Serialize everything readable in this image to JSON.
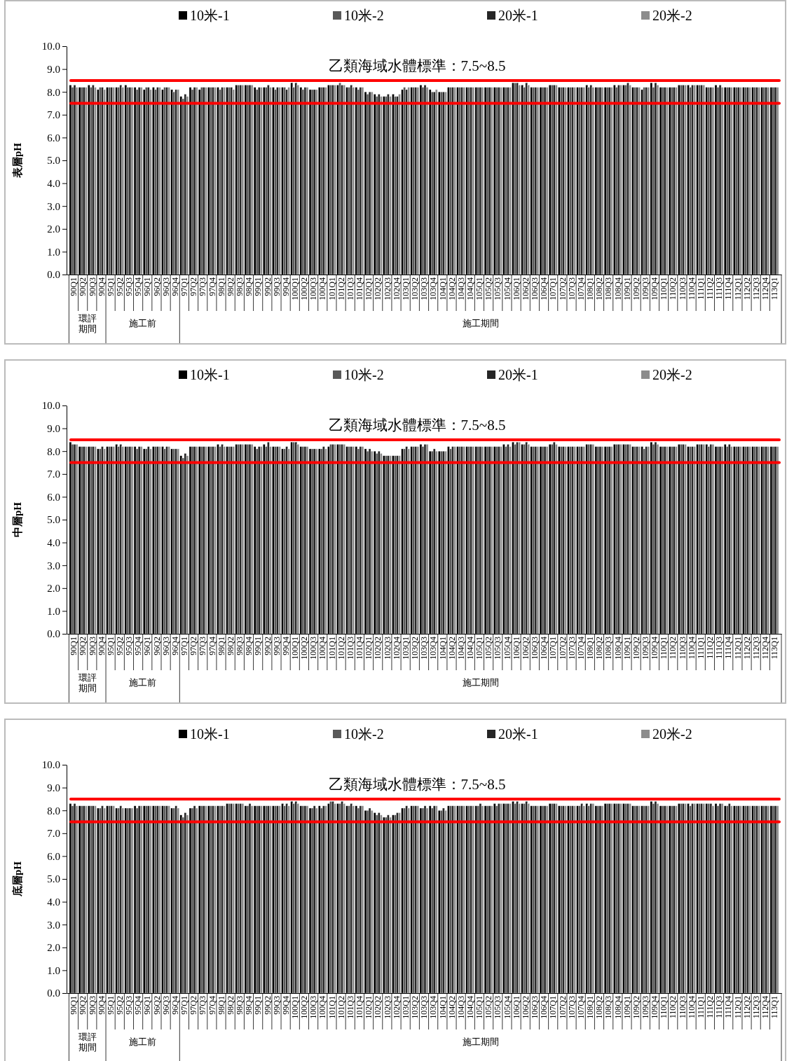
{
  "chart_data": [
    {
      "type": "bar",
      "ylabel": "表層pH",
      "legend": "top",
      "grid": false,
      "categories": [
        "90Q1",
        "90Q2",
        "90Q3",
        "90Q4",
        "95Q1",
        "95Q2",
        "95Q3",
        "95Q4",
        "96Q1",
        "96Q2",
        "96Q3",
        "96Q4",
        "97Q1",
        "97Q2",
        "97Q3",
        "97Q4",
        "98Q1",
        "98Q2",
        "98Q3",
        "98Q4",
        "99Q1",
        "99Q2",
        "99Q3",
        "99Q4",
        "100Q1",
        "100Q2",
        "100Q3",
        "100Q4",
        "101Q1",
        "101Q2",
        "101Q3",
        "101Q4",
        "102Q1",
        "102Q2",
        "102Q3",
        "102Q4",
        "103Q1",
        "103Q2",
        "103Q3",
        "103Q4",
        "104Q1",
        "104Q2",
        "104Q3",
        "104Q4",
        "105Q1",
        "105Q2",
        "105Q3",
        "105Q4",
        "106Q1",
        "106Q2",
        "106Q3",
        "106Q4",
        "107Q1",
        "107Q2",
        "107Q3",
        "107Q4",
        "108Q1",
        "108Q2",
        "108Q3",
        "108Q4",
        "109Q1",
        "109Q2",
        "109Q3",
        "109Q4",
        "110Q1",
        "110Q2",
        "110Q3",
        "110Q4",
        "111Q1",
        "111Q2",
        "111Q3",
        "111Q4",
        "112Q1",
        "112Q2",
        "112Q3",
        "112Q4",
        "113Q1"
      ],
      "series": [
        {
          "name": "10米-1",
          "color": "#000000",
          "values": [
            8.3,
            8.2,
            8.3,
            8.1,
            8.2,
            8.2,
            8.3,
            8.2,
            8.1,
            8.2,
            8.1,
            8.1,
            7.8,
            8.2,
            8.1,
            8.2,
            8.2,
            8.2,
            8.3,
            8.3,
            8.2,
            8.2,
            8.2,
            8.2,
            8.4,
            8.2,
            8.1,
            8.2,
            8.3,
            8.3,
            8.2,
            8.2,
            8.0,
            7.9,
            7.8,
            7.9,
            8.1,
            8.2,
            8.3,
            8.1,
            8.0,
            8.2,
            8.2,
            8.2,
            8.2,
            8.2,
            8.2,
            8.2,
            8.4,
            8.3,
            8.2,
            8.2,
            8.3,
            8.2,
            8.2,
            8.2,
            8.3,
            8.2,
            8.2,
            8.3,
            8.3,
            8.2,
            8.1,
            8.4,
            8.2,
            8.2,
            8.3,
            8.3,
            8.3,
            8.2,
            8.3,
            8.2,
            8.2,
            8.2,
            8.2,
            8.2,
            8.2
          ]
        },
        {
          "name": "10米-2",
          "color": "#595959",
          "values": [
            8.2,
            8.2,
            8.2,
            8.2,
            8.2,
            8.2,
            8.2,
            8.1,
            8.2,
            8.1,
            8.2,
            8.0,
            7.7,
            8.1,
            8.2,
            8.2,
            8.1,
            8.2,
            8.3,
            8.3,
            8.1,
            8.2,
            8.1,
            8.2,
            8.2,
            8.1,
            8.1,
            8.2,
            8.3,
            8.4,
            8.2,
            8.1,
            7.9,
            7.8,
            7.8,
            7.8,
            8.2,
            8.2,
            8.2,
            8.0,
            8.0,
            8.2,
            8.2,
            8.2,
            8.2,
            8.2,
            8.2,
            8.2,
            8.4,
            8.2,
            8.2,
            8.2,
            8.3,
            8.2,
            8.2,
            8.2,
            8.2,
            8.2,
            8.2,
            8.2,
            8.3,
            8.2,
            8.2,
            8.2,
            8.2,
            8.2,
            8.3,
            8.2,
            8.3,
            8.2,
            8.2,
            8.2,
            8.2,
            8.2,
            8.2,
            8.2,
            8.2
          ]
        },
        {
          "name": "20米-1",
          "color": "#262626",
          "values": [
            8.3,
            8.2,
            8.3,
            8.2,
            8.2,
            8.3,
            8.2,
            8.2,
            8.2,
            8.2,
            8.2,
            8.1,
            7.9,
            8.2,
            8.2,
            8.2,
            8.2,
            8.2,
            8.3,
            8.3,
            8.2,
            8.3,
            8.2,
            8.1,
            8.4,
            8.2,
            8.1,
            8.2,
            8.3,
            8.3,
            8.3,
            8.2,
            8.0,
            7.9,
            7.9,
            7.8,
            8.1,
            8.2,
            8.3,
            8.0,
            8.0,
            8.2,
            8.2,
            8.2,
            8.2,
            8.2,
            8.2,
            8.2,
            8.4,
            8.4,
            8.2,
            8.2,
            8.3,
            8.2,
            8.2,
            8.2,
            8.3,
            8.2,
            8.2,
            8.3,
            8.4,
            8.2,
            8.2,
            8.4,
            8.2,
            8.2,
            8.3,
            8.3,
            8.3,
            8.2,
            8.3,
            8.2,
            8.2,
            8.2,
            8.2,
            8.2,
            8.2
          ]
        },
        {
          "name": "20米-2",
          "color": "#8c8c8c",
          "values": [
            8.2,
            8.2,
            8.2,
            8.1,
            8.2,
            8.2,
            8.2,
            8.2,
            8.1,
            8.2,
            8.2,
            8.1,
            7.8,
            8.2,
            8.2,
            8.2,
            8.2,
            8.1,
            8.3,
            8.3,
            8.2,
            8.2,
            8.2,
            8.2,
            8.3,
            8.2,
            8.1,
            8.2,
            8.3,
            8.3,
            8.2,
            8.2,
            8.0,
            7.8,
            7.8,
            7.9,
            8.2,
            8.2,
            8.2,
            8.1,
            8.0,
            8.2,
            8.2,
            8.2,
            8.2,
            8.2,
            8.2,
            8.2,
            8.3,
            8.3,
            8.2,
            8.2,
            8.3,
            8.2,
            8.2,
            8.2,
            8.2,
            8.2,
            8.2,
            8.3,
            8.3,
            8.2,
            8.2,
            8.3,
            8.2,
            8.2,
            8.3,
            8.3,
            8.3,
            8.2,
            8.2,
            8.2,
            8.2,
            8.2,
            8.2,
            8.2,
            8.2
          ]
        }
      ],
      "ylim": [
        0,
        10
      ],
      "yticks": [
        {
          "value": 0,
          "label": "0.0"
        },
        {
          "value": 1,
          "label": "1.0"
        },
        {
          "value": 2,
          "label": "2.0"
        },
        {
          "value": 3,
          "label": "3.0"
        },
        {
          "value": 4,
          "label": "4.0"
        },
        {
          "value": 5,
          "label": "5.0"
        },
        {
          "value": 6,
          "label": "6.0"
        },
        {
          "value": 7,
          "label": "7.0"
        },
        {
          "value": 8,
          "label": "8.0"
        },
        {
          "value": 9,
          "label": "9.0"
        },
        {
          "value": 10,
          "label": "10.0"
        }
      ],
      "ref_lines": [
        {
          "axis": "y",
          "value": 8.5,
          "label": "乙類海域水體標準：7.5~8.5",
          "color": "#ff0000"
        },
        {
          "axis": "y",
          "value": 7.5,
          "color": "#ff0000"
        }
      ],
      "annotations": [
        "環評期間",
        "施工前",
        "施工期間"
      ]
    },
    {
      "type": "bar",
      "ylabel": "中層pH",
      "legend": "top",
      "grid": false,
      "categories": [
        "90Q1",
        "90Q2",
        "90Q3",
        "90Q4",
        "95Q1",
        "95Q2",
        "95Q3",
        "95Q4",
        "96Q1",
        "96Q2",
        "96Q3",
        "96Q4",
        "97Q1",
        "97Q2",
        "97Q3",
        "97Q4",
        "98Q1",
        "98Q2",
        "98Q3",
        "98Q4",
        "99Q1",
        "99Q2",
        "99Q3",
        "99Q4",
        "100Q1",
        "100Q2",
        "100Q3",
        "100Q4",
        "101Q1",
        "101Q2",
        "101Q3",
        "101Q4",
        "102Q1",
        "102Q2",
        "102Q3",
        "102Q4",
        "103Q1",
        "103Q2",
        "103Q3",
        "103Q4",
        "104Q1",
        "104Q2",
        "104Q3",
        "104Q4",
        "105Q1",
        "105Q2",
        "105Q3",
        "105Q4",
        "106Q1",
        "106Q2",
        "106Q3",
        "106Q4",
        "107Q1",
        "107Q2",
        "107Q3",
        "107Q4",
        "108Q1",
        "108Q2",
        "108Q3",
        "108Q4",
        "109Q1",
        "109Q2",
        "109Q3",
        "109Q4",
        "110Q1",
        "110Q2",
        "110Q3",
        "110Q4",
        "111Q1",
        "111Q2",
        "111Q3",
        "111Q4",
        "112Q1",
        "112Q2",
        "112Q3",
        "112Q4",
        "113Q1"
      ],
      "series": [
        {
          "name": "10米-1",
          "color": "#000000",
          "values": [
            8.4,
            8.2,
            8.2,
            8.1,
            8.2,
            8.3,
            8.2,
            8.2,
            8.1,
            8.2,
            8.2,
            8.1,
            7.8,
            8.2,
            8.2,
            8.2,
            8.3,
            8.2,
            8.3,
            8.3,
            8.2,
            8.3,
            8.2,
            8.1,
            8.4,
            8.2,
            8.1,
            8.1,
            8.2,
            8.3,
            8.2,
            8.2,
            8.1,
            8.0,
            7.8,
            7.8,
            8.1,
            8.2,
            8.3,
            8.0,
            8.0,
            8.2,
            8.2,
            8.2,
            8.2,
            8.2,
            8.2,
            8.3,
            8.4,
            8.3,
            8.2,
            8.2,
            8.3,
            8.2,
            8.2,
            8.2,
            8.3,
            8.2,
            8.2,
            8.3,
            8.3,
            8.2,
            8.2,
            8.4,
            8.2,
            8.2,
            8.3,
            8.2,
            8.3,
            8.3,
            8.2,
            8.3,
            8.2,
            8.2,
            8.2,
            8.2,
            8.2
          ]
        },
        {
          "name": "10米-2",
          "color": "#595959",
          "values": [
            8.3,
            8.2,
            8.2,
            8.1,
            8.2,
            8.2,
            8.2,
            8.1,
            8.1,
            8.2,
            8.1,
            8.1,
            7.7,
            8.2,
            8.2,
            8.2,
            8.2,
            8.2,
            8.3,
            8.3,
            8.1,
            8.2,
            8.2,
            8.1,
            8.4,
            8.2,
            8.1,
            8.1,
            8.3,
            8.3,
            8.2,
            8.1,
            8.0,
            7.9,
            7.8,
            7.8,
            8.1,
            8.2,
            8.2,
            8.0,
            8.0,
            8.1,
            8.2,
            8.2,
            8.2,
            8.2,
            8.2,
            8.2,
            8.3,
            8.3,
            8.2,
            8.2,
            8.3,
            8.2,
            8.2,
            8.2,
            8.3,
            8.2,
            8.2,
            8.3,
            8.3,
            8.2,
            8.1,
            8.3,
            8.2,
            8.2,
            8.3,
            8.2,
            8.3,
            8.2,
            8.2,
            8.2,
            8.2,
            8.2,
            8.2,
            8.2,
            8.2
          ]
        },
        {
          "name": "20米-1",
          "color": "#262626",
          "values": [
            8.3,
            8.2,
            8.2,
            8.2,
            8.2,
            8.3,
            8.2,
            8.2,
            8.2,
            8.2,
            8.2,
            8.1,
            7.9,
            8.2,
            8.2,
            8.2,
            8.3,
            8.2,
            8.3,
            8.3,
            8.2,
            8.4,
            8.2,
            8.2,
            8.4,
            8.2,
            8.1,
            8.2,
            8.3,
            8.3,
            8.2,
            8.2,
            8.1,
            8.0,
            7.8,
            7.8,
            8.2,
            8.2,
            8.3,
            8.1,
            8.0,
            8.2,
            8.2,
            8.2,
            8.2,
            8.2,
            8.2,
            8.3,
            8.4,
            8.4,
            8.2,
            8.2,
            8.4,
            8.2,
            8.2,
            8.2,
            8.3,
            8.2,
            8.2,
            8.3,
            8.3,
            8.2,
            8.2,
            8.4,
            8.2,
            8.2,
            8.3,
            8.2,
            8.3,
            8.3,
            8.2,
            8.3,
            8.2,
            8.2,
            8.2,
            8.2,
            8.2
          ]
        },
        {
          "name": "20米-2",
          "color": "#8c8c8c",
          "values": [
            8.3,
            8.2,
            8.2,
            8.1,
            8.2,
            8.2,
            8.2,
            8.2,
            8.1,
            8.2,
            8.2,
            8.1,
            7.8,
            8.2,
            8.2,
            8.2,
            8.2,
            8.2,
            8.3,
            8.3,
            8.2,
            8.2,
            8.2,
            8.1,
            8.3,
            8.2,
            8.1,
            8.1,
            8.3,
            8.3,
            8.2,
            8.2,
            8.0,
            7.9,
            7.8,
            7.8,
            8.1,
            8.2,
            8.3,
            8.0,
            8.0,
            8.2,
            8.2,
            8.2,
            8.2,
            8.2,
            8.2,
            8.2,
            8.4,
            8.3,
            8.2,
            8.2,
            8.3,
            8.2,
            8.2,
            8.2,
            8.3,
            8.2,
            8.2,
            8.3,
            8.3,
            8.2,
            8.2,
            8.3,
            8.2,
            8.2,
            8.3,
            8.2,
            8.3,
            8.3,
            8.2,
            8.2,
            8.2,
            8.2,
            8.2,
            8.2,
            8.2
          ]
        }
      ],
      "ylim": [
        0,
        10
      ],
      "yticks": [
        {
          "value": 0,
          "label": "0.0"
        },
        {
          "value": 1,
          "label": "1.0"
        },
        {
          "value": 2,
          "label": "2.0"
        },
        {
          "value": 3,
          "label": "3.0"
        },
        {
          "value": 4,
          "label": "4.0"
        },
        {
          "value": 5,
          "label": "5.0"
        },
        {
          "value": 6,
          "label": "6.0"
        },
        {
          "value": 7,
          "label": "7.0"
        },
        {
          "value": 8,
          "label": "8.0"
        },
        {
          "value": 9,
          "label": "9.0"
        },
        {
          "value": 10,
          "label": "10.0"
        }
      ],
      "ref_lines": [
        {
          "axis": "y",
          "value": 8.5,
          "label": "乙類海域水體標準：7.5~8.5",
          "color": "#ff0000"
        },
        {
          "axis": "y",
          "value": 7.5,
          "color": "#ff0000"
        }
      ],
      "annotations": [
        "環評期間",
        "施工前",
        "施工期間"
      ]
    },
    {
      "type": "bar",
      "ylabel": "底層pH",
      "legend": "top",
      "grid": false,
      "categories": [
        "90Q1",
        "90Q2",
        "90Q3",
        "90Q4",
        "95Q1",
        "95Q2",
        "95Q3",
        "95Q4",
        "96Q1",
        "96Q2",
        "96Q3",
        "96Q4",
        "97Q1",
        "97Q2",
        "97Q3",
        "97Q4",
        "98Q1",
        "98Q2",
        "98Q3",
        "98Q4",
        "99Q1",
        "99Q2",
        "99Q3",
        "99Q4",
        "100Q1",
        "100Q2",
        "100Q3",
        "100Q4",
        "101Q1",
        "101Q2",
        "101Q3",
        "101Q4",
        "102Q1",
        "102Q2",
        "102Q3",
        "102Q4",
        "103Q1",
        "103Q2",
        "103Q3",
        "103Q4",
        "104Q1",
        "104Q2",
        "104Q3",
        "104Q4",
        "105Q1",
        "105Q2",
        "105Q3",
        "105Q4",
        "106Q1",
        "106Q2",
        "106Q3",
        "106Q4",
        "107Q1",
        "107Q2",
        "107Q3",
        "107Q4",
        "108Q1",
        "108Q2",
        "108Q3",
        "108Q4",
        "109Q1",
        "109Q2",
        "109Q3",
        "109Q4",
        "110Q1",
        "110Q2",
        "110Q3",
        "110Q4",
        "111Q1",
        "111Q2",
        "111Q3",
        "111Q4",
        "112Q1",
        "112Q2",
        "112Q3",
        "112Q4",
        "113Q1"
      ],
      "series": [
        {
          "name": "10米-1",
          "color": "#000000",
          "values": [
            8.3,
            8.2,
            8.2,
            8.1,
            8.2,
            8.1,
            8.1,
            8.2,
            8.2,
            8.2,
            8.2,
            8.1,
            7.8,
            8.1,
            8.2,
            8.2,
            8.2,
            8.3,
            8.3,
            8.2,
            8.2,
            8.2,
            8.2,
            8.3,
            8.4,
            8.2,
            8.1,
            8.2,
            8.3,
            8.3,
            8.2,
            8.2,
            8.0,
            7.9,
            7.7,
            7.8,
            8.1,
            8.2,
            8.1,
            8.2,
            8.0,
            8.2,
            8.2,
            8.2,
            8.2,
            8.2,
            8.3,
            8.3,
            8.4,
            8.3,
            8.2,
            8.2,
            8.3,
            8.2,
            8.2,
            8.2,
            8.3,
            8.2,
            8.3,
            8.3,
            8.3,
            8.2,
            8.2,
            8.4,
            8.2,
            8.2,
            8.3,
            8.3,
            8.3,
            8.3,
            8.3,
            8.2,
            8.2,
            8.2,
            8.2,
            8.2,
            8.2
          ]
        },
        {
          "name": "10米-2",
          "color": "#595959",
          "values": [
            8.2,
            8.2,
            8.2,
            8.1,
            8.2,
            8.1,
            8.1,
            8.1,
            8.2,
            8.2,
            8.2,
            8.1,
            7.7,
            8.1,
            8.2,
            8.2,
            8.2,
            8.3,
            8.3,
            8.2,
            8.2,
            8.2,
            8.2,
            8.2,
            8.3,
            8.2,
            8.1,
            8.1,
            8.4,
            8.3,
            8.2,
            8.1,
            8.0,
            7.8,
            7.7,
            7.8,
            8.1,
            8.2,
            8.1,
            8.1,
            8.0,
            8.2,
            8.2,
            8.2,
            8.2,
            8.2,
            8.2,
            8.3,
            8.3,
            8.3,
            8.2,
            8.2,
            8.3,
            8.2,
            8.2,
            8.2,
            8.2,
            8.2,
            8.3,
            8.3,
            8.3,
            8.2,
            8.2,
            8.3,
            8.2,
            8.2,
            8.3,
            8.2,
            8.3,
            8.3,
            8.2,
            8.2,
            8.2,
            8.2,
            8.2,
            8.2,
            8.2
          ]
        },
        {
          "name": "20米-1",
          "color": "#262626",
          "values": [
            8.3,
            8.2,
            8.2,
            8.2,
            8.2,
            8.2,
            8.1,
            8.2,
            8.2,
            8.2,
            8.2,
            8.2,
            7.9,
            8.2,
            8.2,
            8.2,
            8.2,
            8.3,
            8.3,
            8.3,
            8.2,
            8.2,
            8.2,
            8.3,
            8.4,
            8.2,
            8.2,
            8.2,
            8.4,
            8.4,
            8.3,
            8.2,
            8.1,
            7.9,
            7.8,
            7.9,
            8.2,
            8.2,
            8.2,
            8.2,
            8.1,
            8.2,
            8.2,
            8.2,
            8.3,
            8.2,
            8.3,
            8.3,
            8.4,
            8.4,
            8.2,
            8.2,
            8.3,
            8.2,
            8.2,
            8.3,
            8.3,
            8.2,
            8.3,
            8.3,
            8.3,
            8.2,
            8.2,
            8.4,
            8.2,
            8.2,
            8.3,
            8.3,
            8.3,
            8.3,
            8.3,
            8.3,
            8.2,
            8.2,
            8.2,
            8.2,
            8.2
          ]
        },
        {
          "name": "20米-2",
          "color": "#8c8c8c",
          "values": [
            8.2,
            8.2,
            8.2,
            8.1,
            8.2,
            8.1,
            8.1,
            8.2,
            8.2,
            8.2,
            8.2,
            8.1,
            7.8,
            8.1,
            8.2,
            8.2,
            8.2,
            8.3,
            8.3,
            8.2,
            8.2,
            8.2,
            8.2,
            8.2,
            8.3,
            8.2,
            8.1,
            8.2,
            8.3,
            8.3,
            8.2,
            8.2,
            8.0,
            7.8,
            7.7,
            7.9,
            8.1,
            8.2,
            8.1,
            8.2,
            8.0,
            8.2,
            8.2,
            8.2,
            8.2,
            8.2,
            8.3,
            8.3,
            8.3,
            8.3,
            8.2,
            8.2,
            8.3,
            8.2,
            8.2,
            8.2,
            8.3,
            8.2,
            8.3,
            8.3,
            8.3,
            8.2,
            8.2,
            8.3,
            8.2,
            8.2,
            8.3,
            8.3,
            8.3,
            8.2,
            8.3,
            8.2,
            8.2,
            8.2,
            8.2,
            8.2,
            8.2
          ]
        }
      ],
      "ylim": [
        0,
        10
      ],
      "yticks": [
        {
          "value": 0,
          "label": "0.0"
        },
        {
          "value": 1,
          "label": "1.0"
        },
        {
          "value": 2,
          "label": "2.0"
        },
        {
          "value": 3,
          "label": "3.0"
        },
        {
          "value": 4,
          "label": "4.0"
        },
        {
          "value": 5,
          "label": "5.0"
        },
        {
          "value": 6,
          "label": "6.0"
        },
        {
          "value": 7,
          "label": "7.0"
        },
        {
          "value": 8,
          "label": "8.0"
        },
        {
          "value": 9,
          "label": "9.0"
        },
        {
          "value": 10,
          "label": "10.0"
        }
      ],
      "ref_lines": [
        {
          "axis": "y",
          "value": 8.5,
          "label": "乙類海域水體標準：7.5~8.5",
          "color": "#ff0000"
        },
        {
          "axis": "y",
          "value": 7.5,
          "color": "#ff0000"
        }
      ],
      "annotations": [
        "環評期間",
        "施工前",
        "施工期間"
      ]
    }
  ]
}
